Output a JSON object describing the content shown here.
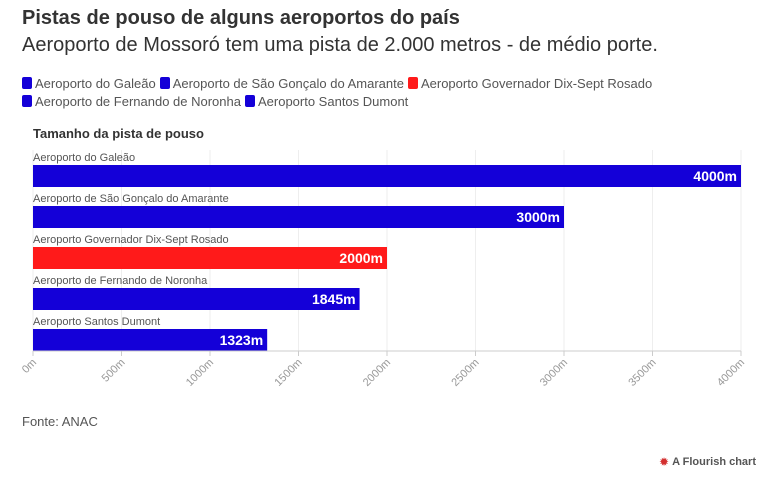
{
  "header": {
    "title": "Pistas de pouso de alguns aeroportos do país",
    "subtitle": "Aeroporto de Mossoró tem uma pista de 2.000 metros - de médio porte."
  },
  "legend": {
    "items": [
      {
        "label": "Aeroporto do Galeão",
        "color": "#1400d8"
      },
      {
        "label": "Aeroporto de São Gonçalo do Amarante",
        "color": "#1400d8"
      },
      {
        "label": "Aeroporto Governador Dix-Sept Rosado",
        "color": "#ff1a1a"
      },
      {
        "label": "Aeroporto de Fernando de Noronha",
        "color": "#1400d8"
      },
      {
        "label": "Aeroporto Santos Dumont",
        "color": "#1400d8"
      }
    ]
  },
  "chart_data": {
    "type": "bar",
    "orientation": "horizontal",
    "title": "Tamanho da pista de pouso",
    "categories": [
      "Aeroporto do Galeão",
      "Aeroporto de São Gonçalo do Amarante",
      "Aeroporto Governador Dix-Sept Rosado",
      "Aeroporto de Fernando de Noronha",
      "Aeroporto Santos Dumont"
    ],
    "values": [
      4000,
      3000,
      2000,
      1845,
      1323
    ],
    "value_labels": [
      "4000m",
      "3000m",
      "2000m",
      "1845m",
      "1323m"
    ],
    "colors": [
      "#1400d8",
      "#1400d8",
      "#ff1a1a",
      "#1400d8",
      "#1400d8"
    ],
    "xlim": [
      0,
      4000
    ],
    "xticks": [
      0,
      500,
      1000,
      1500,
      2000,
      2500,
      3000,
      3500,
      4000
    ],
    "xtick_labels": [
      "0m",
      "500m",
      "1000m",
      "1500m",
      "2000m",
      "2500m",
      "3000m",
      "3500m",
      "4000m"
    ],
    "grid": true
  },
  "footer": {
    "source": "Fonte: ANAC",
    "credit": "A Flourish chart",
    "credit_icon": "flourish-logo-icon"
  }
}
